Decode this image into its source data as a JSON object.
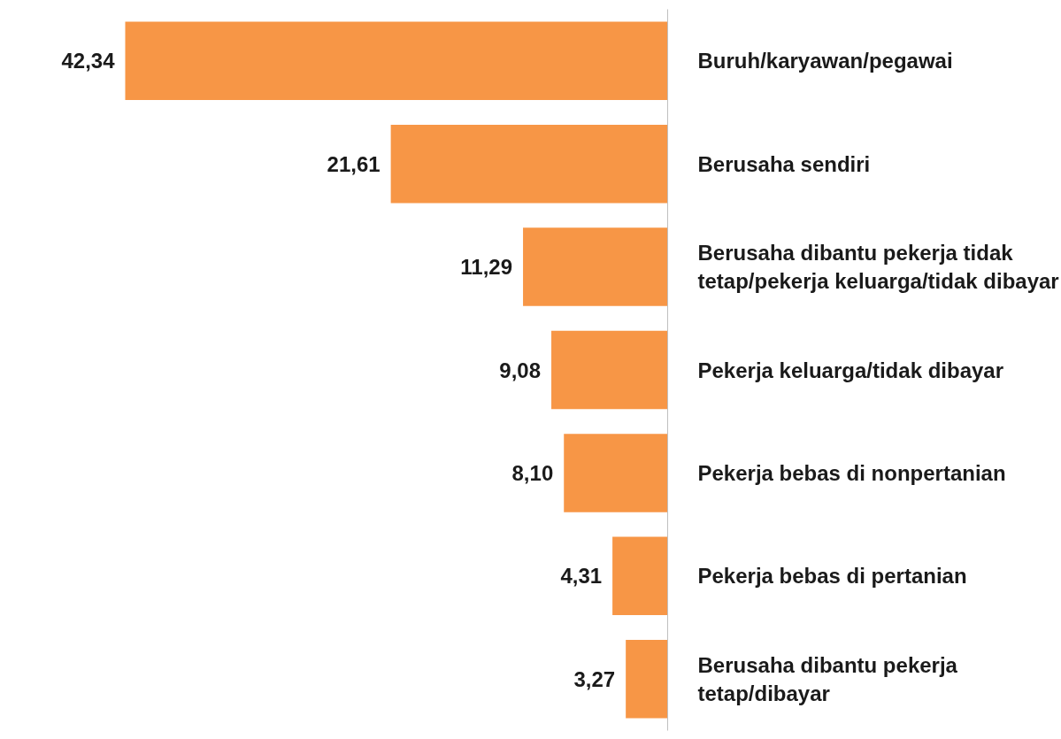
{
  "chart_data": {
    "type": "bar",
    "orientation": "horizontal",
    "categories": [
      "Buruh/karyawan/pegawai",
      "Berusaha sendiri",
      "Berusaha dibantu pekerja tidak tetap/pekerja keluarga/tidak dibayar",
      "Pekerja keluarga/tidak dibayar",
      "Pekerja bebas di nonpertanian",
      "Pekerja bebas di pertanian",
      "Berusaha dibantu pekerja tetap/dibayar"
    ],
    "values": [
      42.34,
      21.61,
      11.29,
      9.08,
      8.1,
      4.31,
      3.27
    ],
    "value_labels": [
      "42,34",
      "21,61",
      "11,29",
      "9,08",
      "8,10",
      "4,31",
      "3,27"
    ],
    "color": "#f79646",
    "grid": false
  }
}
